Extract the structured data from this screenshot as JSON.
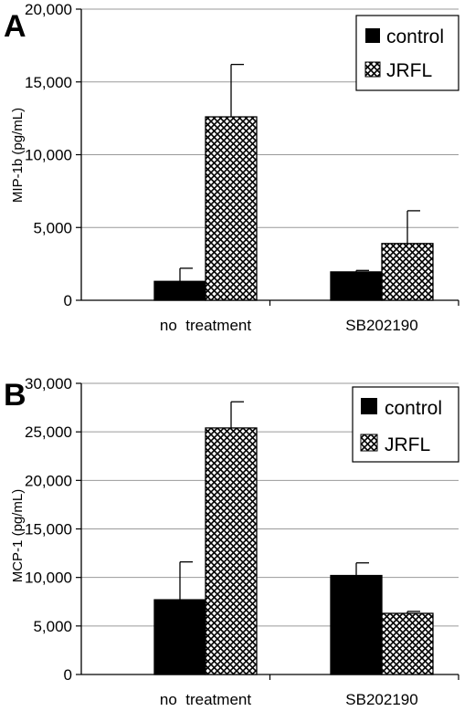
{
  "chart_data": [
    {
      "type": "bar",
      "panel_label": "A",
      "ylabel": "MIP-1b  (pg/mL)",
      "ylim": [
        0,
        20000
      ],
      "yticks": [
        0,
        5000,
        10000,
        15000,
        20000
      ],
      "ytick_labels": [
        "0",
        "5,000",
        "10,000",
        "15,000",
        "20,000"
      ],
      "categories": [
        "no  treatment",
        "SB202190"
      ],
      "series": [
        {
          "name": "control",
          "values": [
            1300,
            1950
          ],
          "errors": [
            900,
            100
          ],
          "color": "#000000",
          "pattern": "solid"
        },
        {
          "name": "JRFL",
          "values": [
            12600,
            3900
          ],
          "errors": [
            3600,
            2250
          ],
          "color": "#000000",
          "pattern": "crosshatch"
        }
      ],
      "grid": true,
      "legend": "top-right"
    },
    {
      "type": "bar",
      "panel_label": "B",
      "ylabel": "MCP-1  (pg/mL)",
      "ylim": [
        0,
        30000
      ],
      "yticks": [
        0,
        5000,
        10000,
        15000,
        20000,
        25000,
        30000
      ],
      "ytick_labels": [
        "0",
        "5,000",
        "10,000",
        "15,000",
        "20,000",
        "25,000",
        "30,000"
      ],
      "categories": [
        "no  treatment",
        "SB202190"
      ],
      "series": [
        {
          "name": "control",
          "values": [
            7700,
            10200
          ],
          "errors": [
            3900,
            1300
          ],
          "color": "#000000",
          "pattern": "solid"
        },
        {
          "name": "JRFL",
          "values": [
            25400,
            6300
          ],
          "errors": [
            2700,
            200
          ],
          "color": "#000000",
          "pattern": "crosshatch"
        }
      ],
      "grid": true,
      "legend": "top-right"
    }
  ]
}
